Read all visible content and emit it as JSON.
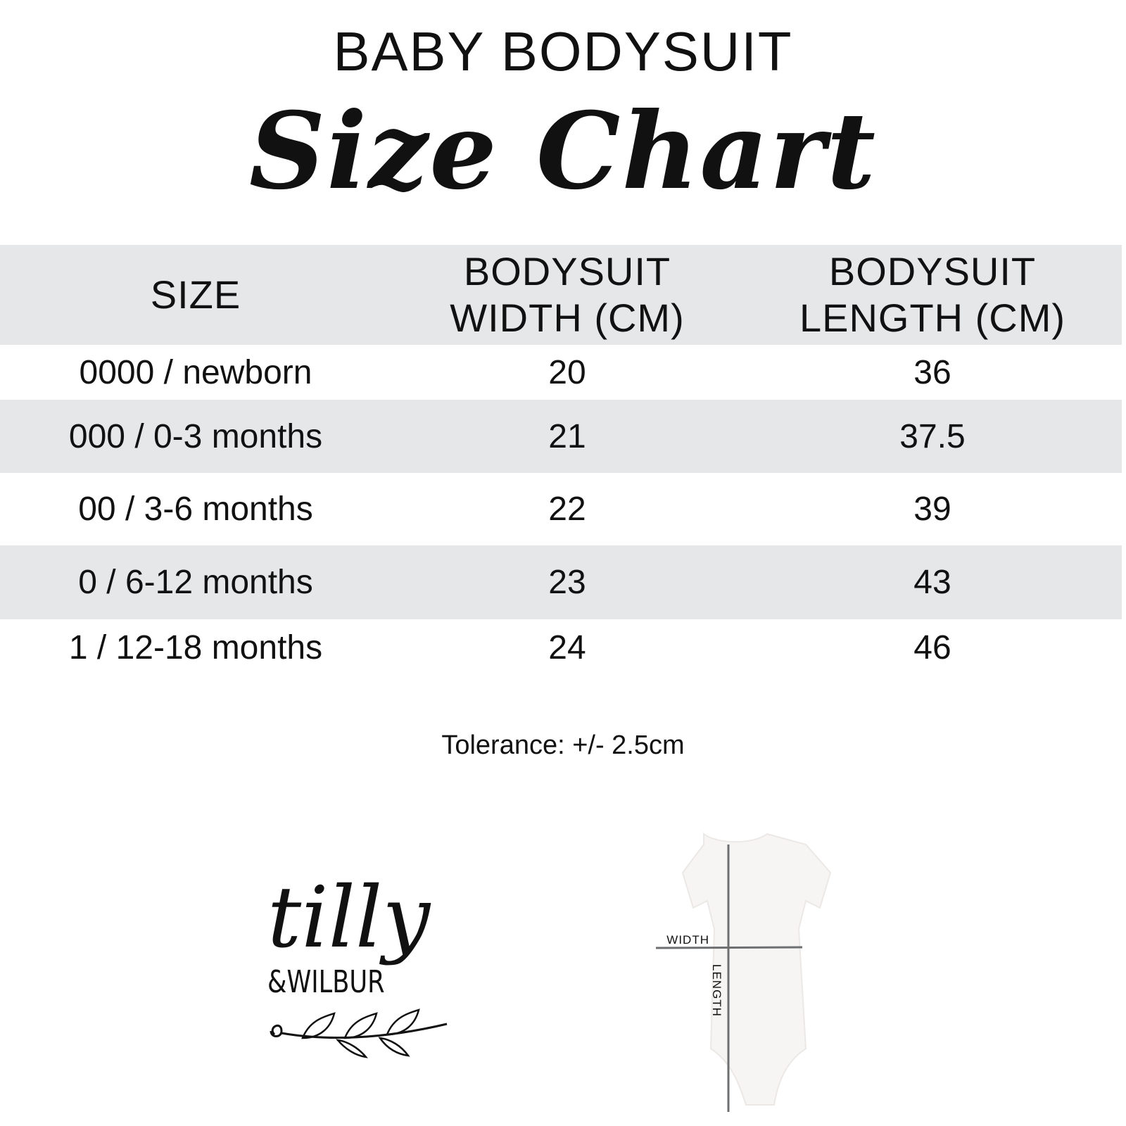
{
  "heading": "BABY BODYSUIT",
  "title": "Size Chart",
  "table": {
    "headers": [
      "SIZE",
      "BODYSUIT\nWIDTH (CM)",
      "BODYSUIT\nLENGTH (CM)"
    ],
    "rows": [
      [
        "0000 / newborn",
        "20",
        "36"
      ],
      [
        "000 / 0-3 months",
        "21",
        "37.5"
      ],
      [
        "00 / 3-6 months",
        "22",
        "39"
      ],
      [
        "0 / 6-12 months",
        "23",
        "43"
      ],
      [
        "1 / 12-18 months",
        "24",
        "46"
      ]
    ]
  },
  "tolerance": "Tolerance: +/- 2.5cm",
  "logo": {
    "line1": "tilly",
    "line2": "&WILBUR"
  },
  "diagram": {
    "width_label": "WIDTH",
    "length_label": "LENGTH"
  },
  "colors": {
    "band": "#e6e7e9",
    "text": "#111111",
    "guide_line": "#6d6f71"
  }
}
